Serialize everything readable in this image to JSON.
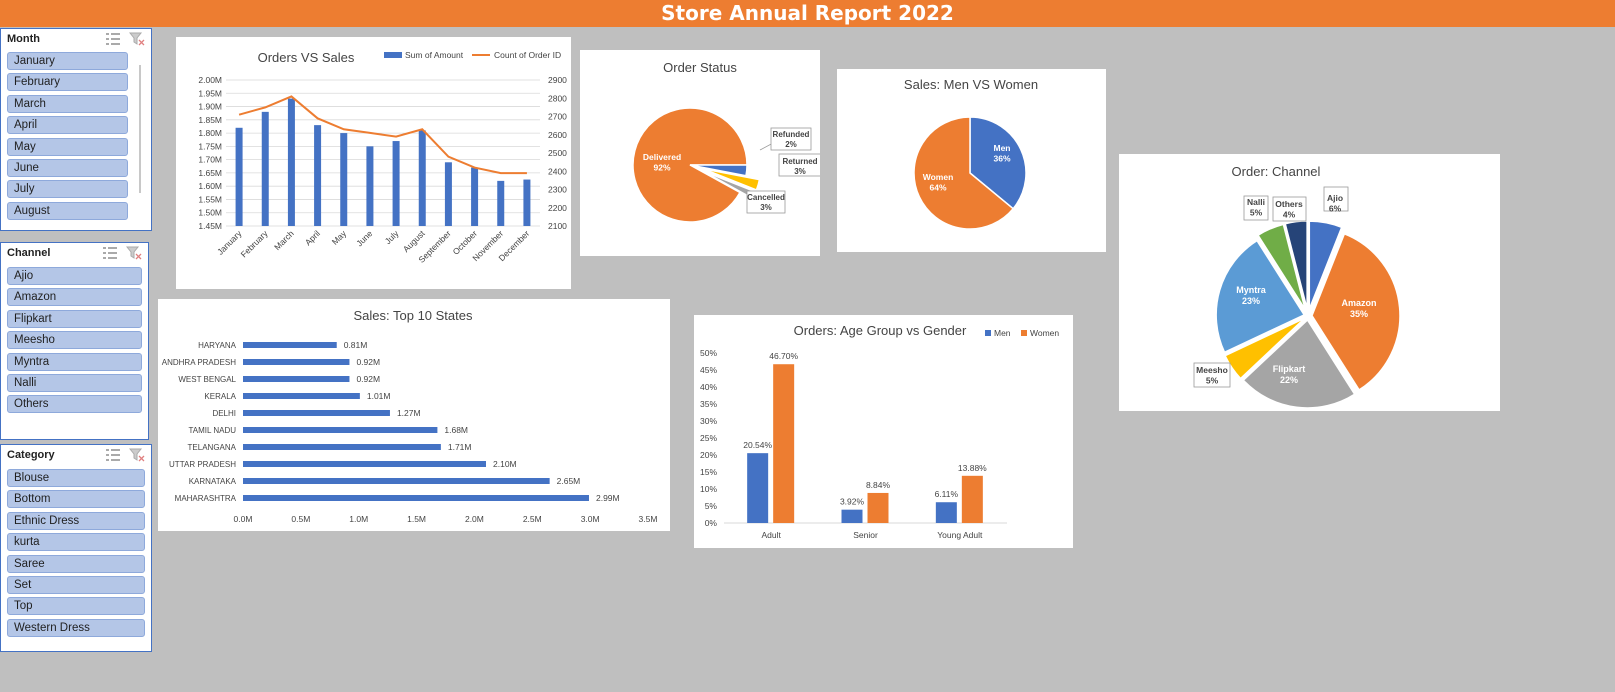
{
  "report_title": "Store Annual Report 2022",
  "slicers": {
    "month": {
      "title": "Month",
      "items": [
        "January",
        "February",
        "March",
        "April",
        "May",
        "June",
        "July",
        "August"
      ]
    },
    "channel": {
      "title": "Channel",
      "items": [
        "Ajio",
        "Amazon",
        "Flipkart",
        "Meesho",
        "Myntra",
        "Nalli",
        "Others"
      ]
    },
    "category": {
      "title": "Category",
      "items": [
        "Blouse",
        "Bottom",
        "Ethnic Dress",
        "kurta",
        "Saree",
        "Set",
        "Top",
        "Western Dress"
      ]
    }
  },
  "colors": {
    "accent": "#ed7d31",
    "blue": "#4472c4",
    "gray": "#a5a5a5",
    "yellow": "#ffc000",
    "lightblue": "#5b9bd5",
    "green": "#70ad47",
    "navy": "#264478",
    "slicer_item": "#b4c6e7"
  },
  "chart_data": [
    {
      "type": "bar",
      "title": "Orders VS Sales",
      "categories": [
        "January",
        "February",
        "March",
        "April",
        "May",
        "June",
        "July",
        "August",
        "September",
        "October",
        "November",
        "December"
      ],
      "series": [
        {
          "name": "Sum of Amount",
          "kind": "bar",
          "axis": "left",
          "values": [
            1.82,
            1.88,
            1.93,
            1.83,
            1.8,
            1.75,
            1.77,
            1.81,
            1.69,
            1.67,
            1.62,
            1.625
          ]
        },
        {
          "name": "Count of Order ID",
          "kind": "line",
          "axis": "right",
          "values": [
            2710,
            2750,
            2810,
            2690,
            2630,
            2610,
            2590,
            2630,
            2480,
            2420,
            2390,
            2390
          ]
        }
      ],
      "ylim_left": [
        1.45,
        2.0
      ],
      "ylim_right": [
        2100,
        2900
      ],
      "yticks_left": [
        "2.00M",
        "1.95M",
        "1.90M",
        "1.85M",
        "1.80M",
        "1.75M",
        "1.70M",
        "1.65M",
        "1.60M",
        "1.55M",
        "1.50M",
        "1.45M"
      ],
      "yticks_right": [
        "2900",
        "2800",
        "2700",
        "2600",
        "2500",
        "2400",
        "2300",
        "2200",
        "2100"
      ],
      "grid": true,
      "legend": "top-right"
    },
    {
      "type": "pie",
      "title": "Order Status",
      "categories": [
        "Delivered",
        "Cancelled",
        "Returned",
        "Refunded"
      ],
      "values": [
        92,
        3,
        3,
        2
      ],
      "labels": [
        "92%",
        "3%",
        "3%",
        "2%"
      ]
    },
    {
      "type": "pie",
      "title": "Sales: Men VS Women",
      "categories": [
        "Men",
        "Women"
      ],
      "values": [
        36,
        64
      ],
      "labels": [
        "36%",
        "64%"
      ]
    },
    {
      "type": "pie",
      "title": "Order: Channel",
      "categories": [
        "Ajio",
        "Amazon",
        "Flipkart",
        "Meesho",
        "Myntra",
        "Nalli",
        "Others"
      ],
      "values": [
        6,
        35,
        22,
        5,
        23,
        5,
        4
      ],
      "labels": [
        "6%",
        "35%",
        "22%",
        "5%",
        "23%",
        "5%",
        "4%"
      ]
    },
    {
      "type": "bar",
      "orientation": "horizontal",
      "title": "Sales: Top 10 States",
      "categories": [
        "HARYANA",
        "ANDHRA PRADESH",
        "WEST BENGAL",
        "KERALA",
        "DELHI",
        "TAMIL NADU",
        "TELANGANA",
        "UTTAR PRADESH",
        "KARNATAKA",
        "MAHARASHTRA"
      ],
      "values": [
        0.81,
        0.92,
        0.92,
        1.01,
        1.27,
        1.68,
        1.71,
        2.1,
        2.65,
        2.99
      ],
      "labels": [
        "0.81M",
        "0.92M",
        "0.92M",
        "1.01M",
        "1.27M",
        "1.68M",
        "1.71M",
        "2.10M",
        "2.65M",
        "2.99M"
      ],
      "xlim": [
        0,
        3.5
      ],
      "xticks": [
        "0.0M",
        "0.5M",
        "1.0M",
        "1.5M",
        "2.0M",
        "2.5M",
        "3.0M",
        "3.5M"
      ]
    },
    {
      "type": "bar",
      "title": "Orders: Age Group vs Gender",
      "categories": [
        "Adult",
        "Senior",
        "Young Adult"
      ],
      "series": [
        {
          "name": "Men",
          "values": [
            20.54,
            3.92,
            6.11
          ],
          "labels": [
            "20.54%",
            "3.92%",
            "6.11%"
          ]
        },
        {
          "name": "Women",
          "values": [
            46.7,
            8.84,
            13.88
          ],
          "labels": [
            "46.70%",
            "8.84%",
            "13.88%"
          ]
        }
      ],
      "ylim": [
        0,
        50
      ],
      "yticks": [
        "50%",
        "45%",
        "40%",
        "35%",
        "30%",
        "25%",
        "20%",
        "15%",
        "10%",
        "5%",
        "0%"
      ],
      "legend": "top-right"
    }
  ]
}
